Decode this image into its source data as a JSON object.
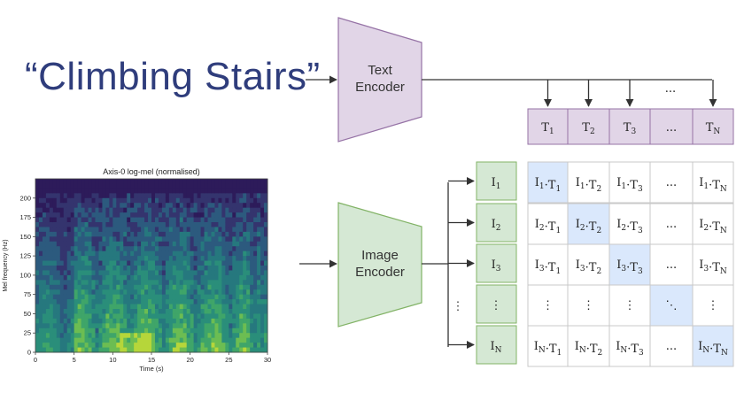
{
  "title": "“Climbing Stairs”",
  "text_encoder": [
    "Text",
    "Encoder"
  ],
  "image_encoder": [
    "Image",
    "Encoder"
  ],
  "text_embeddings": [
    {
      "base": "T",
      "sub": "1"
    },
    {
      "base": "T",
      "sub": "2"
    },
    {
      "base": "T",
      "sub": "3"
    },
    {
      "base": "...",
      "sub": ""
    },
    {
      "base": "T",
      "sub": "N"
    }
  ],
  "image_embeddings": [
    {
      "base": "I",
      "sub": "1"
    },
    {
      "base": "I",
      "sub": "2"
    },
    {
      "base": "I",
      "sub": "3"
    },
    {
      "base": "⋮",
      "sub": ""
    },
    {
      "base": "I",
      "sub": "N"
    }
  ],
  "ellipsis_above": "...",
  "left_dots": "⋮",
  "spectrogram": {
    "title": "Axis-0 log-mel (normalised)",
    "xlabel": "Time (s)",
    "ylabel": "Mel frequency (Hz)",
    "xticks": [
      "0",
      "5",
      "10",
      "15",
      "20",
      "25",
      "30"
    ],
    "yticks": [
      "0",
      "25",
      "50",
      "75",
      "100",
      "125",
      "150",
      "175",
      "200"
    ]
  },
  "colors": {
    "text_encoder_fill": "#e1d5e7",
    "text_encoder_stroke": "#9673a6",
    "image_encoder_fill": "#d5e8d4",
    "image_encoder_stroke": "#82b366",
    "diagonal_fill": "#dae8fc",
    "title": "#2f3d7c"
  }
}
